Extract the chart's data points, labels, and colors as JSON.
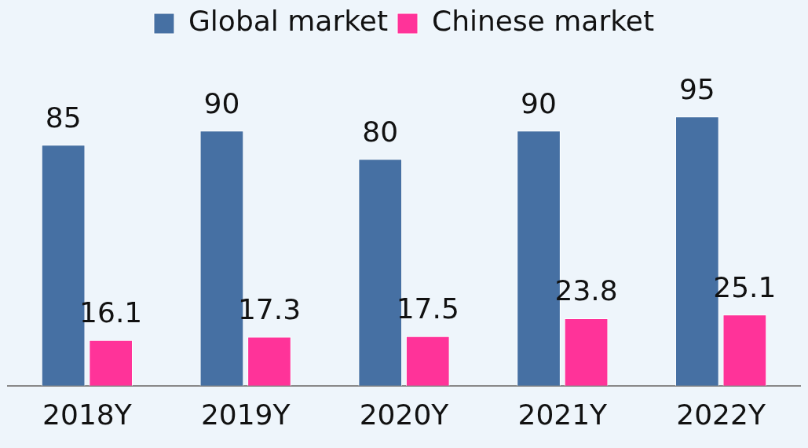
{
  "chart_data": {
    "type": "bar",
    "categories": [
      "2018Y",
      "2019Y",
      "2020Y",
      "2021Y",
      "2022Y"
    ],
    "series": [
      {
        "name": "Global market",
        "color": "#4670a3",
        "values": [
          85,
          90,
          80,
          90,
          95
        ]
      },
      {
        "name": "Chinese market",
        "color": "#ff3399",
        "values": [
          16.1,
          17.3,
          17.5,
          23.8,
          25.1
        ]
      }
    ],
    "data_labels": true,
    "legend": "top",
    "grid": false
  }
}
